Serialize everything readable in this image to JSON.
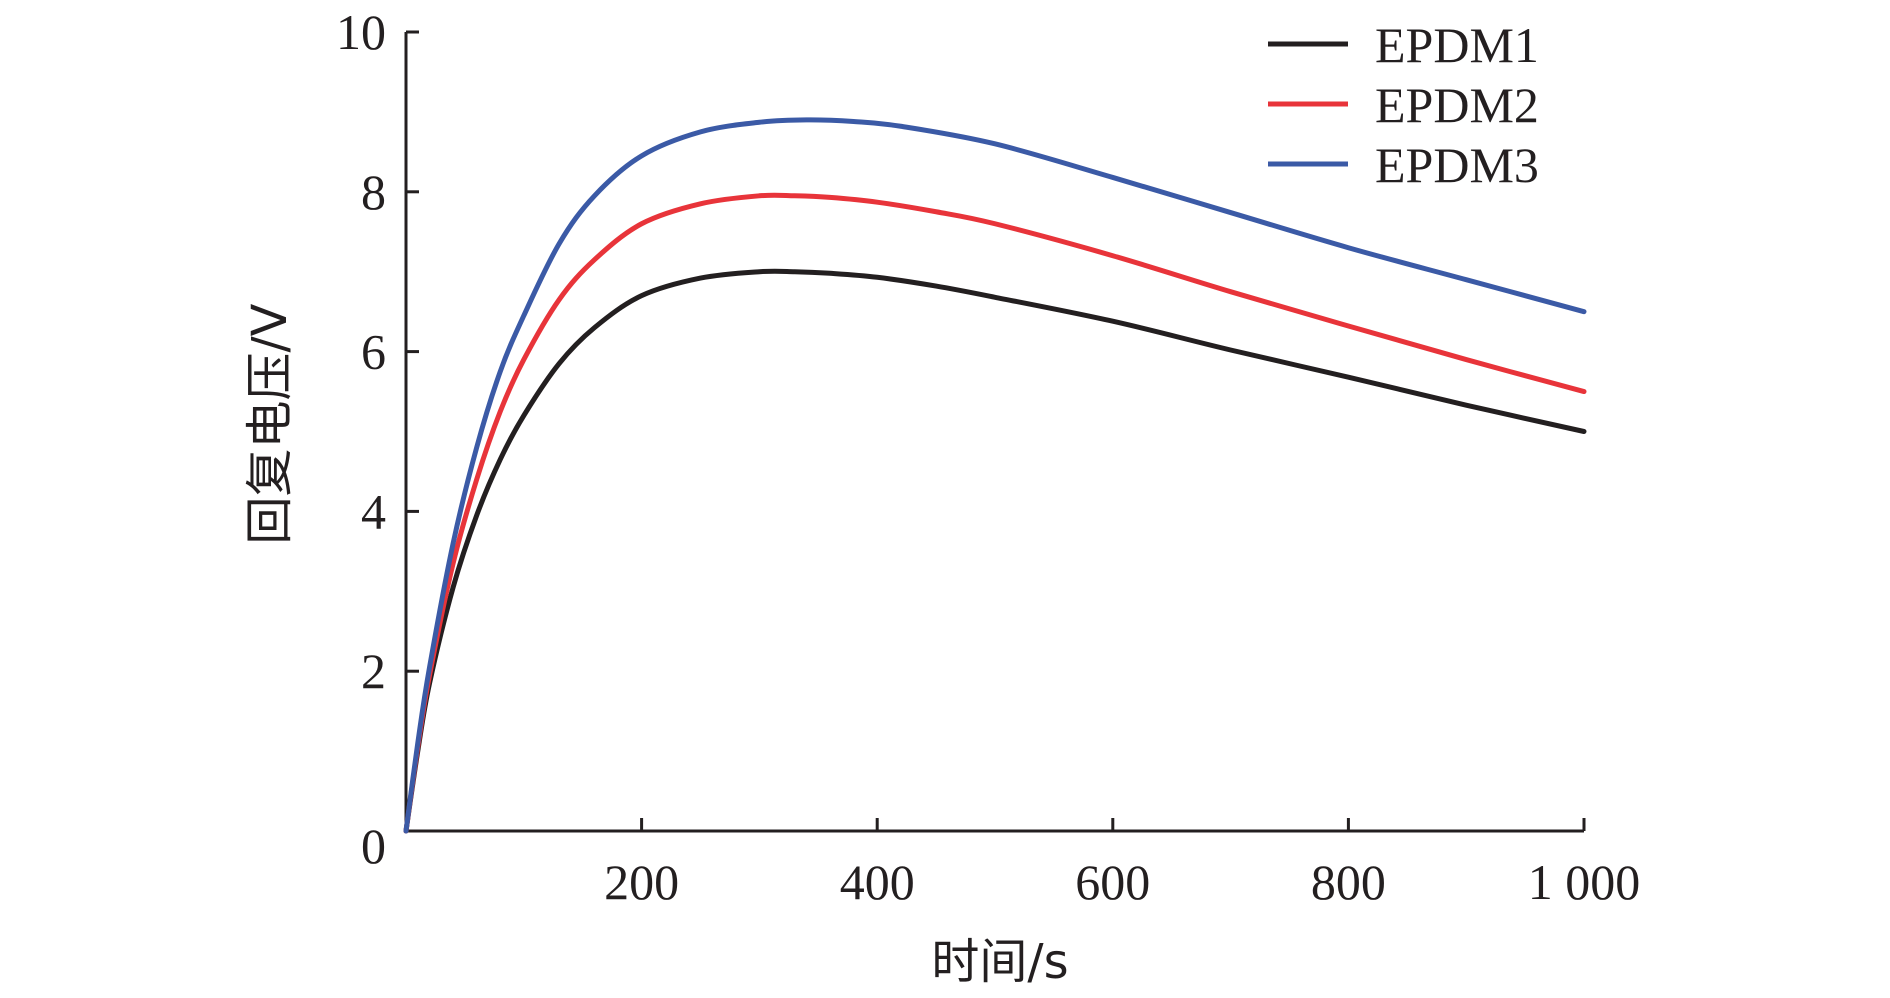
{
  "chart_data": {
    "type": "line",
    "title": "",
    "xlabel": "时间/s",
    "ylabel": "回复电压/V",
    "xlim": [
      0,
      1000
    ],
    "ylim": [
      0,
      10
    ],
    "x_ticks": [
      0,
      200,
      400,
      600,
      800,
      1000
    ],
    "x_tick_labels": [
      "0",
      "200",
      "400",
      "600",
      "800",
      "1 000"
    ],
    "y_ticks": [
      2,
      4,
      6,
      8,
      10
    ],
    "y_tick_labels": [
      "2",
      "4",
      "6",
      "8",
      "10"
    ],
    "grid": false,
    "legend": "top-right",
    "series": [
      {
        "name": "EPDM1",
        "color": "#231f20",
        "x": [
          0,
          10,
          20,
          40,
          60,
          80,
          100,
          130,
          160,
          200,
          250,
          300,
          330,
          360,
          400,
          450,
          500,
          600,
          700,
          800,
          900,
          1000
        ],
        "y": [
          0,
          1.0,
          1.85,
          3.05,
          3.95,
          4.65,
          5.2,
          5.85,
          6.3,
          6.7,
          6.92,
          7.0,
          7.0,
          6.98,
          6.93,
          6.82,
          6.68,
          6.38,
          6.02,
          5.68,
          5.33,
          5.0
        ]
      },
      {
        "name": "EPDM2",
        "color": "#e8343a",
        "x": [
          0,
          10,
          20,
          40,
          60,
          80,
          100,
          130,
          160,
          200,
          250,
          300,
          330,
          360,
          400,
          450,
          500,
          600,
          700,
          800,
          900,
          1000
        ],
        "y": [
          0,
          1.05,
          1.95,
          3.35,
          4.4,
          5.25,
          5.9,
          6.65,
          7.15,
          7.6,
          7.85,
          7.95,
          7.95,
          7.93,
          7.87,
          7.75,
          7.6,
          7.2,
          6.75,
          6.32,
          5.9,
          5.5
        ]
      },
      {
        "name": "EPDM3",
        "color": "#3b5aa6",
        "x": [
          0,
          10,
          20,
          40,
          60,
          80,
          100,
          130,
          160,
          200,
          250,
          300,
          340,
          380,
          420,
          500,
          600,
          700,
          800,
          900,
          1000
        ],
        "y": [
          0,
          1.1,
          2.05,
          3.6,
          4.8,
          5.75,
          6.45,
          7.35,
          7.95,
          8.45,
          8.75,
          8.87,
          8.9,
          8.88,
          8.82,
          8.6,
          8.18,
          7.74,
          7.3,
          6.9,
          6.5
        ]
      }
    ]
  }
}
